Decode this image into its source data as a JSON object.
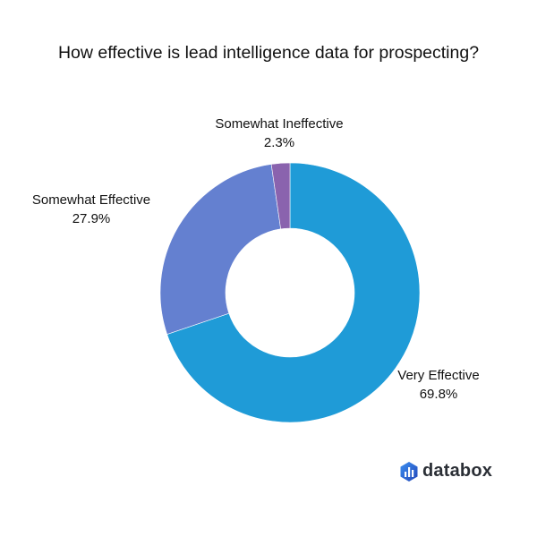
{
  "chart_data": {
    "type": "pie",
    "variant": "donut",
    "title": "How effective is lead intelligence data for prospecting?",
    "start": "12 o'clock, clockwise",
    "slices": [
      {
        "label": "Very Effective",
        "value": 69.8,
        "display": "69.8%",
        "color": "#1f9bd7"
      },
      {
        "label": "Somewhat Effective",
        "value": 27.9,
        "display": "27.9%",
        "color": "#6480d0"
      },
      {
        "label": "Somewhat Ineffective",
        "value": 2.3,
        "display": "2.3%",
        "color": "#8a63ae"
      }
    ]
  },
  "brand": {
    "name": "databox",
    "logo_color": "#2e6fd8"
  }
}
